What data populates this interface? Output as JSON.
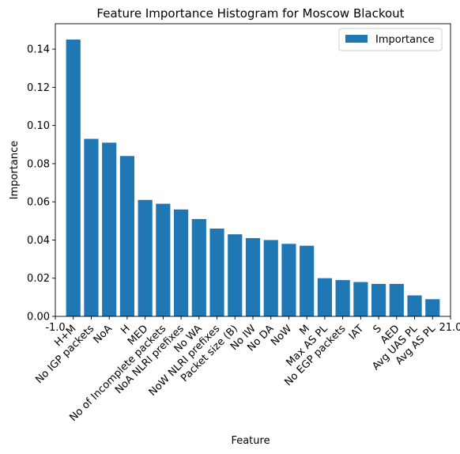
{
  "chart_data": {
    "type": "bar",
    "title": "Feature Importance Histogram for Moscow Blackout",
    "xlabel": "Feature",
    "ylabel": "Importance",
    "categories": [
      "H+M",
      "No IGP packets",
      "NoA",
      "H",
      "MED",
      "No of Incomplete packets",
      "NoA NLRI prefixes",
      "No WA",
      "NoW NLRI prefixes",
      "Packet size (B)",
      "No IW",
      "No DA",
      "NoW",
      "M",
      "Max AS PL",
      "No EGP packets",
      "IAT",
      "S",
      "AED",
      "Avg UAS PL",
      "Avg AS PL"
    ],
    "series": [
      {
        "name": "Importance",
        "color": "#1f77b4",
        "values": [
          0.145,
          0.093,
          0.091,
          0.084,
          0.061,
          0.059,
          0.056,
          0.051,
          0.046,
          0.043,
          0.041,
          0.04,
          0.038,
          0.037,
          0.02,
          0.019,
          0.018,
          0.017,
          0.017,
          0.011,
          0.009
        ]
      }
    ],
    "ylim": [
      0,
      0.1533
    ],
    "xlim": [
      -1.0,
      21.0
    ],
    "yticks": [
      "0.00",
      "0.02",
      "0.04",
      "0.06",
      "0.08",
      "0.10",
      "0.12",
      "0.14"
    ],
    "extra_xticks": [
      "-1.0",
      "21.0"
    ],
    "grid": false,
    "legend": {
      "position": "top-right",
      "entries": [
        "Importance"
      ]
    }
  }
}
